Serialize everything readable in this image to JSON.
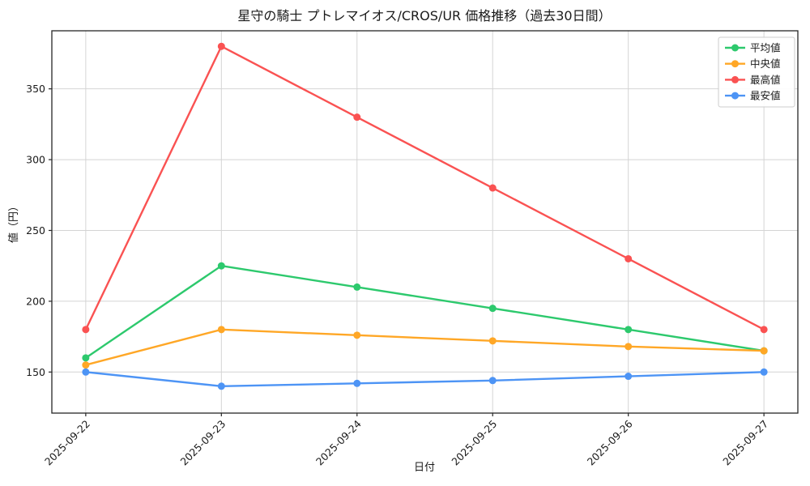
{
  "chart_data": {
    "type": "line",
    "title": "星守の騎士 プトレマイオス/CROS/UR 価格推移（過去30日間）",
    "xlabel": "日付",
    "ylabel": "値（円）",
    "categories": [
      "2025-09-22",
      "2025-09-23",
      "2025-09-24",
      "2025-09-25",
      "2025-09-26",
      "2025-09-27"
    ],
    "series": [
      {
        "name": "平均値",
        "key": "average",
        "color": "#2dc96d",
        "values": [
          160,
          225,
          210,
          195,
          180,
          165
        ]
      },
      {
        "name": "中央値",
        "key": "median",
        "color": "#ffa726",
        "values": [
          155,
          180,
          176,
          172,
          168,
          165
        ]
      },
      {
        "name": "最高値",
        "key": "max",
        "color": "#fa5252",
        "values": [
          180,
          380,
          330,
          280,
          230,
          180
        ]
      },
      {
        "name": "最安値",
        "key": "min",
        "color": "#4d94f5",
        "values": [
          150,
          140,
          142,
          144,
          147,
          150
        ]
      }
    ],
    "yticks": [
      150,
      200,
      250,
      300,
      350
    ],
    "ylim": [
      121,
      391
    ],
    "grid": true,
    "legend_position": "top-right",
    "colors": {
      "grid": "#d4d4d4",
      "spine": "#262626",
      "legend_border": "#cccccc",
      "background": "#ffffff"
    }
  }
}
